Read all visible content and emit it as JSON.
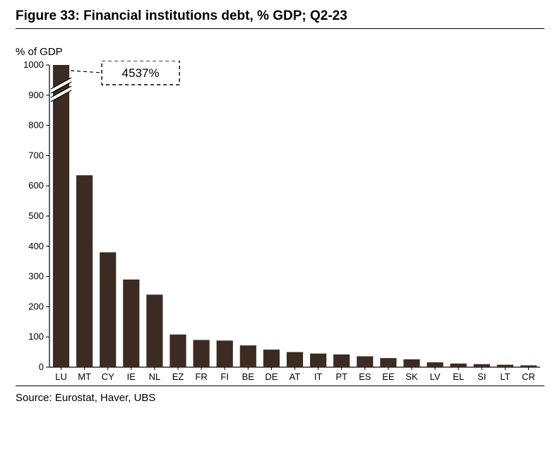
{
  "title": "Figure 33: Financial institutions debt, % GDP; Q2-23",
  "ylabel": "% of GDP",
  "source": "Source: Eurostat, Haver, UBS",
  "chart": {
    "type": "bar",
    "categories": [
      "LU",
      "MT",
      "CY",
      "IE",
      "NL",
      "EZ",
      "FR",
      "FI",
      "BE",
      "DE",
      "AT",
      "IT",
      "PT",
      "ES",
      "EE",
      "SK",
      "LV",
      "EL",
      "SI",
      "LT",
      "CR"
    ],
    "values": [
      1000,
      635,
      380,
      290,
      240,
      108,
      90,
      88,
      72,
      58,
      50,
      45,
      42,
      36,
      30,
      26,
      16,
      12,
      10,
      8,
      6
    ],
    "truncated_index": 0,
    "truncated_callout": "4537%",
    "ylim": [
      0,
      1000
    ],
    "ytick_step": 100,
    "bar_color": "#3b2b22",
    "axis_color": "#000000",
    "grid_color": "none",
    "background_color": "#ffffff",
    "label_fontsize": 13,
    "tick_fontsize": 13,
    "bar_width_ratio": 0.7
  },
  "colors": {
    "rule": "#000000",
    "text": "#000000"
  }
}
